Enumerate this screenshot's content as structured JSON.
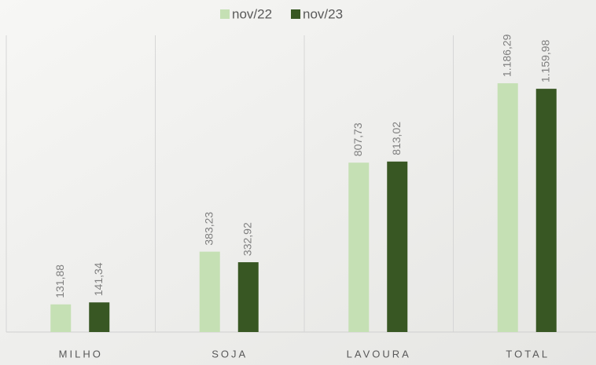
{
  "chart_data": {
    "type": "bar",
    "categories": [
      "MILHO",
      "SOJA",
      "LAVOURA",
      "TOTAL"
    ],
    "series": [
      {
        "name": "nov/22",
        "color": "#c5e0b4",
        "values": [
          131.88,
          383.23,
          807.73,
          1186.29
        ],
        "value_labels": [
          "131,88",
          "383,23",
          "807,73",
          "1.186,29"
        ]
      },
      {
        "name": "nov/23",
        "color": "#385723",
        "values": [
          141.34,
          332.92,
          813.02,
          1159.98
        ],
        "value_labels": [
          "141,34",
          "332,92",
          "813,02",
          "1.159,98"
        ]
      }
    ],
    "ylim": [
      0,
      1400
    ]
  }
}
